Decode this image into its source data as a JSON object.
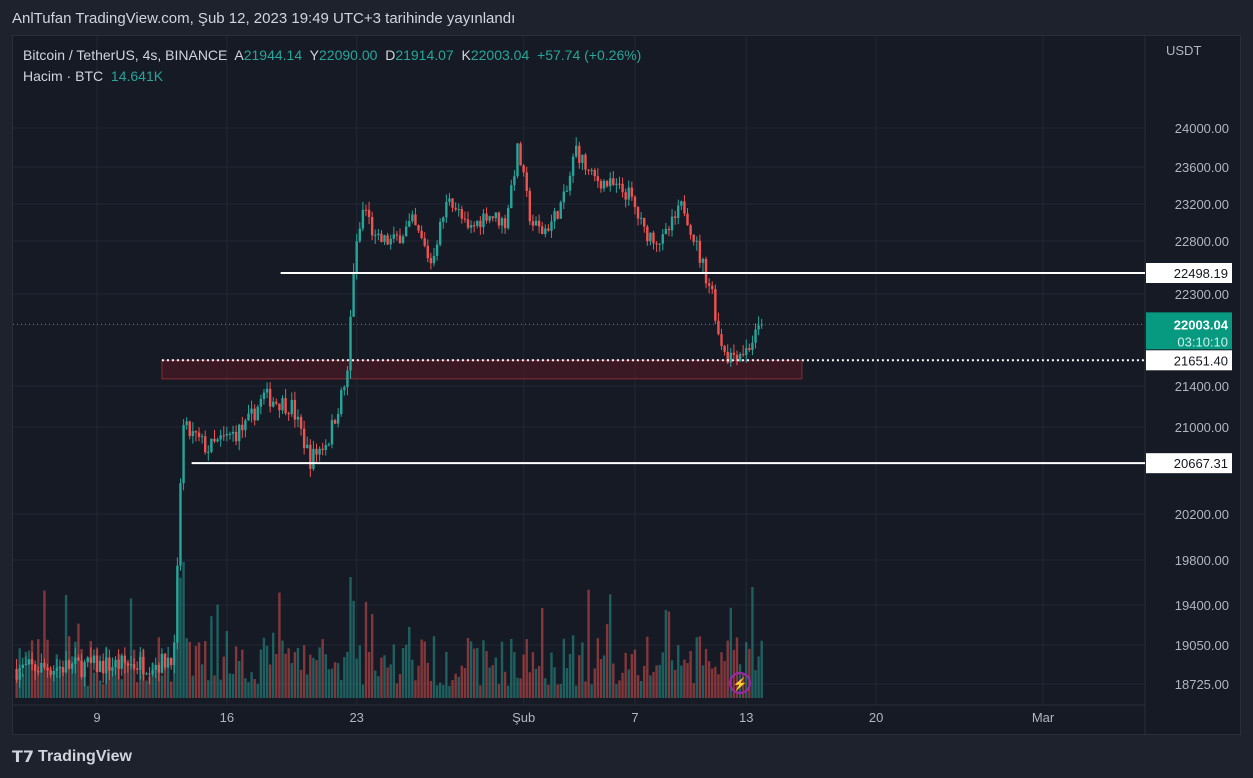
{
  "publish_line": "AnlTufan TradingView.com, Şub 12, 2023 19:49 UTC+3 tarihinde yayınlandı",
  "legend": {
    "symbol": "Bitcoin / TetherUS, 4s, BINANCE",
    "open_label": "A",
    "open": "21944.14",
    "high_label": "Y",
    "high": "22090.00",
    "low_label": "D",
    "low": "21914.07",
    "close_label": "K",
    "close": "22003.04",
    "change": "+57.74 (+0.26%)",
    "volume_label": "Hacim · BTC",
    "volume": "14.641K"
  },
  "currency": "USDT",
  "countdown": "03:10:10",
  "footer": {
    "brand": "TradingView"
  },
  "colors": {
    "up": "#26a69a",
    "down": "#ef5350",
    "bg": "#161a25",
    "zone": "#4a1a24"
  },
  "chart_data": {
    "type": "candlestick",
    "interval": "4h",
    "price_ticks": [
      24000,
      23600,
      23200,
      22800,
      22300,
      21400,
      21000,
      20200,
      19800,
      19400,
      19050,
      18725
    ],
    "time_ticks": [
      {
        "label": "9",
        "day": 0
      },
      {
        "label": "16",
        "day": 7
      },
      {
        "label": "23",
        "day": 14
      },
      {
        "label": "Şub",
        "day": 23
      },
      {
        "label": "7",
        "day": 29
      },
      {
        "label": "13",
        "day": 35
      },
      {
        "label": "20",
        "day": 42
      },
      {
        "label": "Mar",
        "day": 51
      }
    ],
    "price_path": [
      [
        -4.5,
        18850
      ],
      [
        3.5,
        18900
      ],
      [
        4.2,
        19000
      ],
      [
        4.6,
        21000
      ],
      [
        6,
        20800
      ],
      [
        8,
        21000
      ],
      [
        9,
        21300
      ],
      [
        10.5,
        21200
      ],
      [
        11.5,
        20700
      ],
      [
        12.5,
        20900
      ],
      [
        13.5,
        21500
      ],
      [
        13.8,
        22500
      ],
      [
        14.4,
        23200
      ],
      [
        15,
        22800
      ],
      [
        16,
        22800
      ],
      [
        17,
        23000
      ],
      [
        18,
        22600
      ],
      [
        19,
        23300
      ],
      [
        20,
        22900
      ],
      [
        21,
        23100
      ],
      [
        22,
        23000
      ],
      [
        22.7,
        23800
      ],
      [
        23.4,
        23000
      ],
      [
        24,
        22900
      ],
      [
        24.5,
        23000
      ],
      [
        25.3,
        23300
      ],
      [
        25.8,
        23800
      ],
      [
        26.6,
        23500
      ],
      [
        27.7,
        23400
      ],
      [
        28.7,
        23300
      ],
      [
        29.5,
        22900
      ],
      [
        30.5,
        22800
      ],
      [
        31.6,
        23200
      ],
      [
        32.4,
        22700
      ],
      [
        33.2,
        22300
      ],
      [
        33.5,
        21900
      ],
      [
        34,
        21700
      ],
      [
        35,
        21750
      ],
      [
        35.9,
        22003
      ]
    ],
    "levels": [
      {
        "label": "22498.19",
        "price": 22498.19,
        "start_day": 9.9,
        "style": "solid"
      },
      {
        "label": "21651.40",
        "price": 21651.4,
        "start_day": 3.5,
        "style": "dotted"
      },
      {
        "label": "20667.31",
        "price": 20667.31,
        "start_day": 5.1,
        "style": "solid"
      }
    ],
    "zone": {
      "top": 21651.4,
      "bottom": 21470,
      "start_day": 3.5,
      "end_day": 38
    },
    "last_price": "22003.04"
  }
}
